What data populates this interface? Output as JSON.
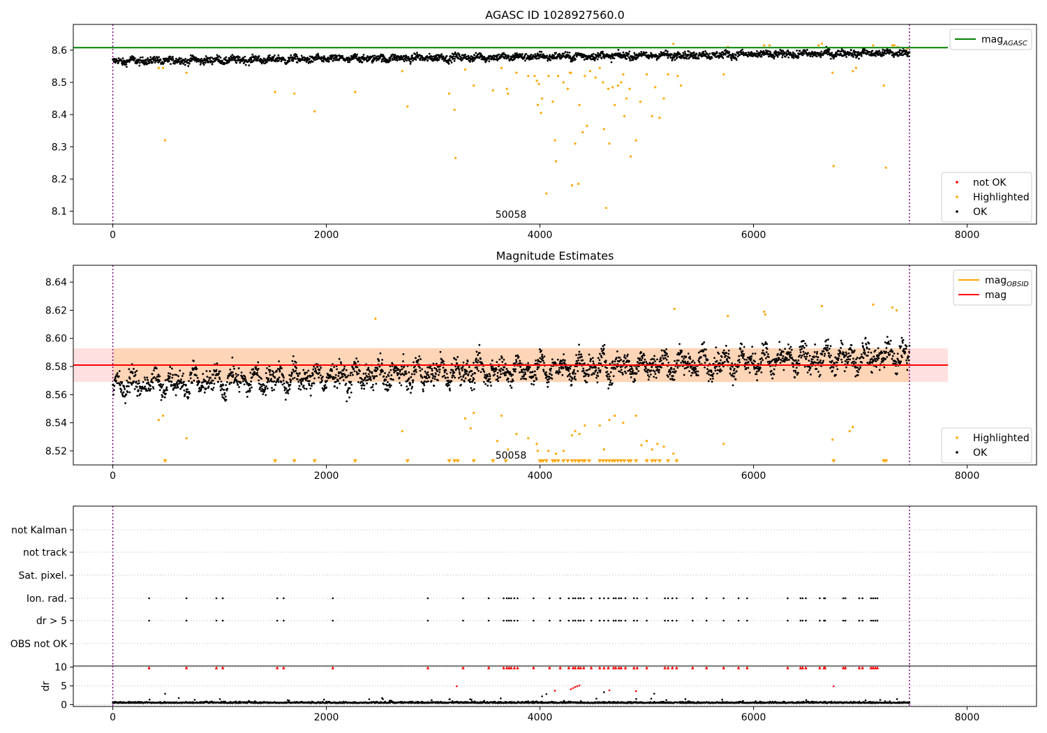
{
  "chart_data": [
    {
      "type": "scatter",
      "title": "AGASC ID 1028927560.0",
      "xlim": [
        -370,
        8650
      ],
      "ylim": [
        8.06,
        8.68
      ],
      "xticks": [
        "0",
        "2000",
        "4000",
        "6000",
        "8000"
      ],
      "yticks": [
        "8.1",
        "8.2",
        "8.3",
        "8.4",
        "8.5",
        "8.6"
      ],
      "annotation": "50058",
      "obs_boundaries": [
        0,
        7460
      ],
      "reference_line": {
        "name": "mag_AGASC",
        "value": 8.608,
        "color": "#008000"
      },
      "legend_top": [
        {
          "label": "mag",
          "sub": "AGASC",
          "color": "#008000",
          "kind": "line"
        }
      ],
      "legend_bottom": [
        {
          "label": "not OK",
          "color": "#ff0000",
          "kind": "dot"
        },
        {
          "label": "Highlighted",
          "color": "#ffa500",
          "kind": "dot"
        },
        {
          "label": "OK",
          "color": "#000000",
          "kind": "dot"
        }
      ],
      "series": [
        {
          "name": "OK",
          "color": "#000000",
          "range": [
            0,
            7460
          ],
          "baseline_start": 8.566,
          "baseline_end": 8.592,
          "spread": 0.011
        },
        {
          "name": "Highlighted",
          "color": "#ffa500",
          "points": [
            [
              430,
              8.545
            ],
            [
              470,
              8.545
            ],
            [
              490,
              8.32
            ],
            [
              690,
              8.53
            ],
            [
              1520,
              8.47
            ],
            [
              1700,
              8.465
            ],
            [
              1890,
              8.41
            ],
            [
              2270,
              8.47
            ],
            [
              2710,
              8.535
            ],
            [
              2760,
              8.425
            ],
            [
              3150,
              8.465
            ],
            [
              3200,
              8.415
            ],
            [
              3210,
              8.265
            ],
            [
              3300,
              8.54
            ],
            [
              3380,
              8.49
            ],
            [
              3560,
              8.475
            ],
            [
              3640,
              8.545
            ],
            [
              3690,
              8.48
            ],
            [
              3700,
              8.465
            ],
            [
              3780,
              8.53
            ],
            [
              3890,
              8.52
            ],
            [
              3950,
              8.52
            ],
            [
              3970,
              8.505
            ],
            [
              3980,
              8.43
            ],
            [
              3990,
              8.495
            ],
            [
              4010,
              8.405
            ],
            [
              4020,
              8.45
            ],
            [
              4060,
              8.155
            ],
            [
              4080,
              8.52
            ],
            [
              4120,
              8.44
            ],
            [
              4140,
              8.32
            ],
            [
              4150,
              8.255
            ],
            [
              4170,
              8.52
            ],
            [
              4220,
              8.5
            ],
            [
              4260,
              8.48
            ],
            [
              4280,
              8.53
            ],
            [
              4290,
              8.53
            ],
            [
              4300,
              8.18
            ],
            [
              4330,
              8.31
            ],
            [
              4360,
              8.185
            ],
            [
              4370,
              8.43
            ],
            [
              4400,
              8.345
            ],
            [
              4420,
              8.52
            ],
            [
              4440,
              8.365
            ],
            [
              4470,
              8.535
            ],
            [
              4520,
              8.515
            ],
            [
              4560,
              8.545
            ],
            [
              4590,
              8.5
            ],
            [
              4600,
              8.355
            ],
            [
              4620,
              8.11
            ],
            [
              4640,
              8.48
            ],
            [
              4650,
              8.31
            ],
            [
              4680,
              8.485
            ],
            [
              4700,
              8.43
            ],
            [
              4730,
              8.49
            ],
            [
              4760,
              8.5
            ],
            [
              4780,
              8.525
            ],
            [
              4790,
              8.395
            ],
            [
              4810,
              8.45
            ],
            [
              4840,
              8.48
            ],
            [
              4850,
              8.27
            ],
            [
              4900,
              8.32
            ],
            [
              4940,
              8.44
            ],
            [
              5000,
              8.525
            ],
            [
              5050,
              8.395
            ],
            [
              5080,
              8.485
            ],
            [
              5120,
              8.39
            ],
            [
              5160,
              8.45
            ],
            [
              5200,
              8.525
            ],
            [
              5250,
              8.62
            ],
            [
              5290,
              8.52
            ],
            [
              5320,
              8.49
            ],
            [
              5720,
              8.525
            ],
            [
              5760,
              8.61
            ],
            [
              6100,
              8.615
            ],
            [
              6150,
              8.615
            ],
            [
              6610,
              8.615
            ],
            [
              6640,
              8.62
            ],
            [
              6740,
              8.53
            ],
            [
              6750,
              8.24
            ],
            [
              6930,
              8.535
            ],
            [
              6960,
              8.545
            ],
            [
              7120,
              8.615
            ],
            [
              7220,
              8.49
            ],
            [
              7240,
              8.235
            ],
            [
              7300,
              8.615
            ],
            [
              7320,
              8.615
            ],
            [
              7350,
              8.61
            ],
            [
              7440,
              8.605
            ]
          ]
        }
      ]
    },
    {
      "type": "scatter",
      "title": "Magnitude Estimates",
      "xlim": [
        -370,
        8650
      ],
      "ylim": [
        8.51,
        8.652
      ],
      "xticks": [
        "0",
        "2000",
        "4000",
        "6000",
        "8000"
      ],
      "yticks": [
        "8.52",
        "8.54",
        "8.56",
        "8.58",
        "8.60",
        "8.62",
        "8.64"
      ],
      "annotation": "50058",
      "obs_boundaries": [
        0,
        7460
      ],
      "mag_line": {
        "name": "mag",
        "value": 8.581,
        "color": "#ff0000"
      },
      "mag_band": [
        8.569,
        8.593
      ],
      "legend_top": [
        {
          "label": "mag",
          "sub": "OBSID",
          "color": "#ffa500",
          "kind": "line"
        },
        {
          "label": "mag",
          "sub": "",
          "color": "#ff0000",
          "kind": "line"
        }
      ],
      "legend_bottom": [
        {
          "label": "Highlighted",
          "color": "#ffa500",
          "kind": "dot"
        },
        {
          "label": "OK",
          "color": "#000000",
          "kind": "dot"
        }
      ],
      "series": [
        {
          "name": "OK",
          "color": "#000000",
          "range": [
            0,
            7460
          ],
          "baseline_start": 8.567,
          "baseline_end": 8.588,
          "spread": 0.008
        },
        {
          "name": "Highlighted",
          "color": "#ffa500",
          "points": [
            [
              430,
              8.542
            ],
            [
              470,
              8.545
            ],
            [
              690,
              8.529
            ],
            [
              2710,
              8.534
            ],
            [
              2460,
              8.614
            ],
            [
              3380,
              8.547
            ],
            [
              3300,
              8.543
            ],
            [
              3350,
              8.536
            ],
            [
              3600,
              8.527
            ],
            [
              3640,
              8.545
            ],
            [
              3700,
              8.521
            ],
            [
              3780,
              8.532
            ],
            [
              3890,
              8.529
            ],
            [
              3970,
              8.525
            ],
            [
              3980,
              8.52
            ],
            [
              4080,
              8.52
            ],
            [
              4150,
              8.518
            ],
            [
              4220,
              8.52
            ],
            [
              4300,
              8.531
            ],
            [
              4330,
              8.534
            ],
            [
              4370,
              8.532
            ],
            [
              4420,
              8.538
            ],
            [
              4560,
              8.538
            ],
            [
              4600,
              8.521
            ],
            [
              4650,
              8.542
            ],
            [
              4700,
              8.545
            ],
            [
              4780,
              8.54
            ],
            [
              4900,
              8.545
            ],
            [
              4950,
              8.524
            ],
            [
              5000,
              8.527
            ],
            [
              5050,
              8.521
            ],
            [
              5100,
              8.525
            ],
            [
              5160,
              8.523
            ],
            [
              5250,
              8.518
            ],
            [
              5260,
              8.621
            ],
            [
              5720,
              8.525
            ],
            [
              5760,
              8.616
            ],
            [
              6100,
              8.619
            ],
            [
              6110,
              8.617
            ],
            [
              6640,
              8.623
            ],
            [
              6740,
              8.528
            ],
            [
              6900,
              8.534
            ],
            [
              6930,
              8.537
            ],
            [
              7120,
              8.624
            ],
            [
              7300,
              8.622
            ],
            [
              7340,
              8.62
            ]
          ]
        },
        {
          "name": "Highlighted-below",
          "color": "#ffa500",
          "x": [
            490,
            1520,
            1700,
            1890,
            2270,
            2760,
            3150,
            3200,
            3230,
            3380,
            3560,
            3680,
            4000,
            4010,
            4030,
            4060,
            4120,
            4140,
            4170,
            4220,
            4260,
            4300,
            4330,
            4360,
            4370,
            4400,
            4420,
            4460,
            4560,
            4590,
            4620,
            4650,
            4680,
            4700,
            4730,
            4760,
            4790,
            4830,
            4850,
            4900,
            5000,
            5050,
            5080,
            5120,
            5200,
            5280,
            6750,
            7220,
            7240
          ]
        }
      ]
    },
    {
      "type": "scatter",
      "title": "",
      "xlim": [
        -370,
        8650
      ],
      "xticks": [
        "0",
        "2000",
        "4000",
        "6000",
        "8000"
      ],
      "obs_boundaries": [
        0,
        7460
      ],
      "flag_rows": [
        "not Kalman",
        "not track",
        "Sat. pixel.",
        "Ion. rad.",
        "dr > 5",
        "OBS not OK"
      ],
      "flag_x": [
        340,
        690,
        970,
        1030,
        1540,
        1600,
        2060,
        2950,
        3280,
        3520,
        3660,
        3690,
        3710,
        3730,
        3760,
        3790,
        3940,
        4090,
        4190,
        4270,
        4310,
        4330,
        4360,
        4380,
        4410,
        4480,
        4560,
        4600,
        4640,
        4690,
        4710,
        4740,
        4760,
        4800,
        4880,
        4910,
        5000,
        5170,
        5200,
        5240,
        5280,
        5430,
        5560,
        5720,
        5860,
        5940,
        6320,
        6440,
        6460,
        6490,
        6620,
        6660,
        6670,
        6840,
        6860,
        6990,
        7020,
        7100,
        7120,
        7140,
        7160
      ],
      "dr_ylim": [
        -0.5,
        10.3
      ],
      "dr_yticks": [
        "0",
        "5",
        "10"
      ],
      "dr_ylabel": "dr",
      "dr_marker_y": 9.8,
      "dr_series": {
        "name": "dr",
        "color": "#000000",
        "range": [
          0,
          7460
        ],
        "baseline": 0.4,
        "spread": 0.35
      },
      "dr_outliers": [
        [
          490,
          2.9
        ],
        [
          3220,
          4.9
        ],
        [
          4140,
          3.7
        ],
        [
          4290,
          4.1
        ],
        [
          4310,
          4.4
        ],
        [
          4330,
          4.7
        ],
        [
          4350,
          4.9
        ],
        [
          4370,
          5.1
        ],
        [
          4650,
          3.8
        ],
        [
          4900,
          3.6
        ],
        [
          6750,
          4.9
        ],
        [
          4020,
          2.2
        ],
        [
          4060,
          2.8
        ],
        [
          4600,
          3.3
        ],
        [
          5070,
          2.9
        ]
      ]
    }
  ]
}
